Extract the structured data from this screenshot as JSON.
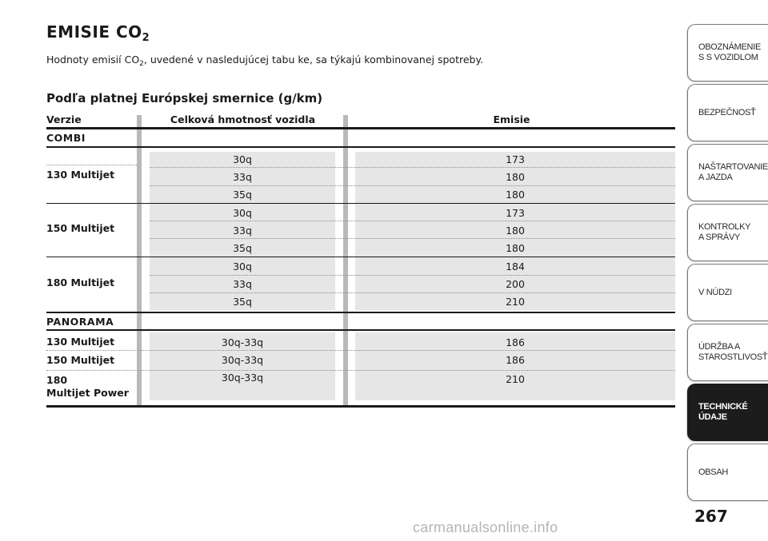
{
  "heading": {
    "title_main": "EMISIE CO",
    "title_sub": "2"
  },
  "intro": {
    "pre": "Hodnoty emisií CO",
    "sub": "2",
    "post": ", uvedené v nasledujúcej tabu ke, sa týkajú kombinovanej spotreby."
  },
  "subheading": "Podľa platnej Európskej smernice (g/km)",
  "table": {
    "headers": [
      "Verzie",
      "Celková hmotnosť vozidla",
      "Emisie"
    ],
    "sections": [
      {
        "name": "COMBI",
        "groups": [
          {
            "version": "130 Multijet",
            "rows": [
              [
                "30q",
                "173"
              ],
              [
                "33q",
                "180"
              ],
              [
                "35q",
                "180"
              ]
            ]
          },
          {
            "version": "150 Multijet",
            "rows": [
              [
                "30q",
                "173"
              ],
              [
                "33q",
                "180"
              ],
              [
                "35q",
                "180"
              ]
            ]
          },
          {
            "version": "180 Multijet",
            "rows": [
              [
                "30q",
                "184"
              ],
              [
                "33q",
                "200"
              ],
              [
                "35q",
                "210"
              ]
            ]
          }
        ]
      },
      {
        "name": "PANORAMA",
        "rows": [
          {
            "version": "130 Multijet",
            "weight": "30q-33q",
            "emission": "186"
          },
          {
            "version": "150 Multijet",
            "weight": "30q-33q",
            "emission": "186"
          },
          {
            "version": "180\nMultijet Power",
            "weight": "30q-33q",
            "emission": "210"
          }
        ]
      }
    ]
  },
  "side_tabs": [
    {
      "label": "OBOZNÁMENIE\nS S VOZIDLOM",
      "active": false
    },
    {
      "label": "BEZPEČNOSŤ",
      "active": false
    },
    {
      "label": "NAŠTARTOVANIE\nA JAZDA",
      "active": false
    },
    {
      "label": "KONTROLKY\nA SPRÁVY",
      "active": false
    },
    {
      "label": "V NÚDZI",
      "active": false
    },
    {
      "label": "ÚDRŽBA A\nSTAROSTLIVOSŤ",
      "active": false
    },
    {
      "label": "TECHNICKÉ\nÚDAJE",
      "active": true
    },
    {
      "label": "OBSAH",
      "active": false
    }
  ],
  "page_number": "267",
  "watermark": "carmanualsonline.info"
}
